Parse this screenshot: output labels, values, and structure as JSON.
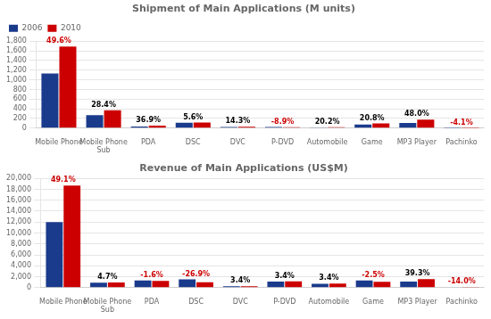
{
  "chart_data": [
    {
      "type": "bar",
      "title": "Shipment of Main Applications (M units)",
      "categories": [
        "Mobile Phone",
        "Mobile Phone\nSub",
        "PDA",
        "DSC",
        "DVC",
        "P-DVD",
        "Automobile",
        "Game",
        "MP3 Player",
        "Pachinko"
      ],
      "series": [
        {
          "name": "2006",
          "color": "#1a3a8c",
          "values": [
            1130,
            270,
            35,
            110,
            25,
            25,
            15,
            75,
            105,
            2
          ]
        },
        {
          "name": "2010",
          "color": "#cc0000",
          "values": [
            1690,
            370,
            50,
            115,
            30,
            20,
            18,
            98,
            175,
            2
          ]
        }
      ],
      "ylim": [
        0,
        1800
      ],
      "yticks": [
        0,
        200,
        400,
        600,
        800,
        {
          "value": 1000,
          "label": "1,000"
        },
        {
          "value": 1200,
          "label": "1,200"
        },
        {
          "value": 1400,
          "label": "1,400"
        },
        {
          "value": 1600,
          "label": "1,600"
        },
        {
          "value": 1800,
          "label": "1,800"
        }
      ],
      "grid": true,
      "legend": "upper left",
      "annotations": [
        {
          "x": "Mobile Phone",
          "text": "49.6%",
          "color": "#cc0000"
        },
        {
          "x": "Mobile Phone\nSub",
          "text": "28.4%",
          "color": "#000000"
        },
        {
          "x": "PDA",
          "text": "36.9%",
          "color": "#000000"
        },
        {
          "x": "DSC",
          "text": "5.6%",
          "color": "#000000"
        },
        {
          "x": "DVC",
          "text": "14.3%",
          "color": "#000000"
        },
        {
          "x": "P-DVD",
          "text": "-8.9%",
          "color": "#cc0000"
        },
        {
          "x": "Automobile",
          "text": "20.2%",
          "color": "#000000"
        },
        {
          "x": "Game",
          "text": "20.8%",
          "color": "#000000"
        },
        {
          "x": "MP3 Player",
          "text": "48.0%",
          "color": "#000000"
        },
        {
          "x": "Pachinko",
          "text": "-4.1%",
          "color": "#cc0000"
        }
      ]
    },
    {
      "type": "bar",
      "title": "Revenue of Main Applications (US$M)",
      "categories": [
        "Mobile Phone",
        "Mobile Phone\nSub",
        "PDA",
        "DSC",
        "DVC",
        "P-DVD",
        "Automobile",
        "Game",
        "MP3 Player",
        "Pachinko"
      ],
      "series": [
        {
          "color": "#1a3a8c",
          "values": [
            12000,
            900,
            1300,
            1500,
            250,
            1100,
            700,
            1300,
            1100,
            80
          ]
        },
        {
          "color": "#cc0000",
          "values": [
            18700,
            950,
            1250,
            1000,
            260,
            1150,
            730,
            1080,
            1550,
            65
          ]
        }
      ],
      "ylim": [
        0,
        20000
      ],
      "yticks": [
        0,
        {
          "value": 2000,
          "label": "2,000"
        },
        {
          "value": 4000,
          "label": "4,000"
        },
        {
          "value": 6000,
          "label": "6,000"
        },
        {
          "value": 8000,
          "label": "8,000"
        },
        {
          "value": 10000,
          "label": "10,000"
        },
        {
          "value": 12000,
          "label": "12,000"
        },
        {
          "value": 14000,
          "label": "14,000"
        },
        {
          "value": 16000,
          "label": "16,000"
        },
        {
          "value": 18000,
          "label": "18,000"
        },
        {
          "value": 20000,
          "label": "20,000"
        }
      ],
      "grid": true,
      "annotations": [
        {
          "x": "Mobile Phone",
          "text": "49.1%",
          "color": "#cc0000"
        },
        {
          "x": "Mobile Phone\nSub",
          "text": "4.7%",
          "color": "#000000"
        },
        {
          "x": "PDA",
          "text": "-1.6%",
          "color": "#cc0000"
        },
        {
          "x": "DSC",
          "text": "-26.9%",
          "color": "#cc0000"
        },
        {
          "x": "DVC",
          "text": "3.4%",
          "color": "#000000"
        },
        {
          "x": "P-DVD",
          "text": "3.4%",
          "color": "#000000"
        },
        {
          "x": "Automobile",
          "text": "3.4%",
          "color": "#000000"
        },
        {
          "x": "Game",
          "text": "-2.5%",
          "color": "#cc0000"
        },
        {
          "x": "MP3 Player",
          "text": "39.3%",
          "color": "#000000"
        },
        {
          "x": "Pachinko",
          "text": "-14.0%",
          "color": "#cc0000"
        }
      ]
    }
  ]
}
